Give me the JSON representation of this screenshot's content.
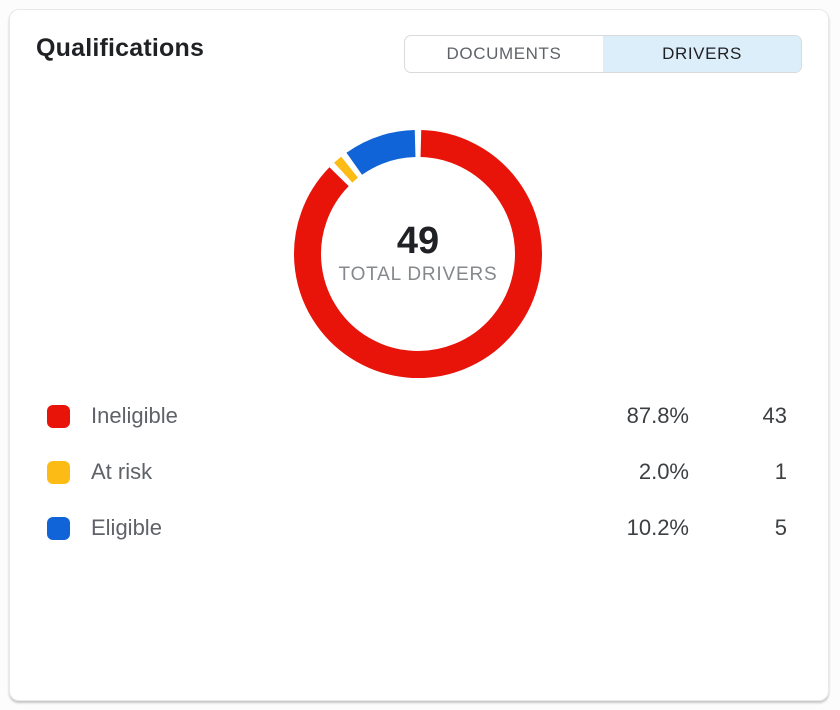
{
  "card": {
    "title": "Qualifications"
  },
  "tabs": [
    {
      "label": "DOCUMENTS",
      "active": false
    },
    {
      "label": "DRIVERS",
      "active": true
    }
  ],
  "chart_data": {
    "type": "pie",
    "donut": true,
    "title": "Qualifications",
    "center_value": "49",
    "center_label": "TOTAL DRIVERS",
    "total": 49,
    "legend_position": "bottom",
    "slices": [
      {
        "label": "Ineligible",
        "value": 43,
        "percent": 87.8,
        "percent_label": "87.8%",
        "count_label": "43",
        "color": "#e81309"
      },
      {
        "label": "At risk",
        "value": 1,
        "percent": 2.0,
        "percent_label": "2.0%",
        "count_label": "1",
        "color": "#fcbc15"
      },
      {
        "label": "Eligible",
        "value": 5,
        "percent": 10.2,
        "percent_label": "10.2%",
        "count_label": "5",
        "color": "#1164d8"
      }
    ]
  }
}
